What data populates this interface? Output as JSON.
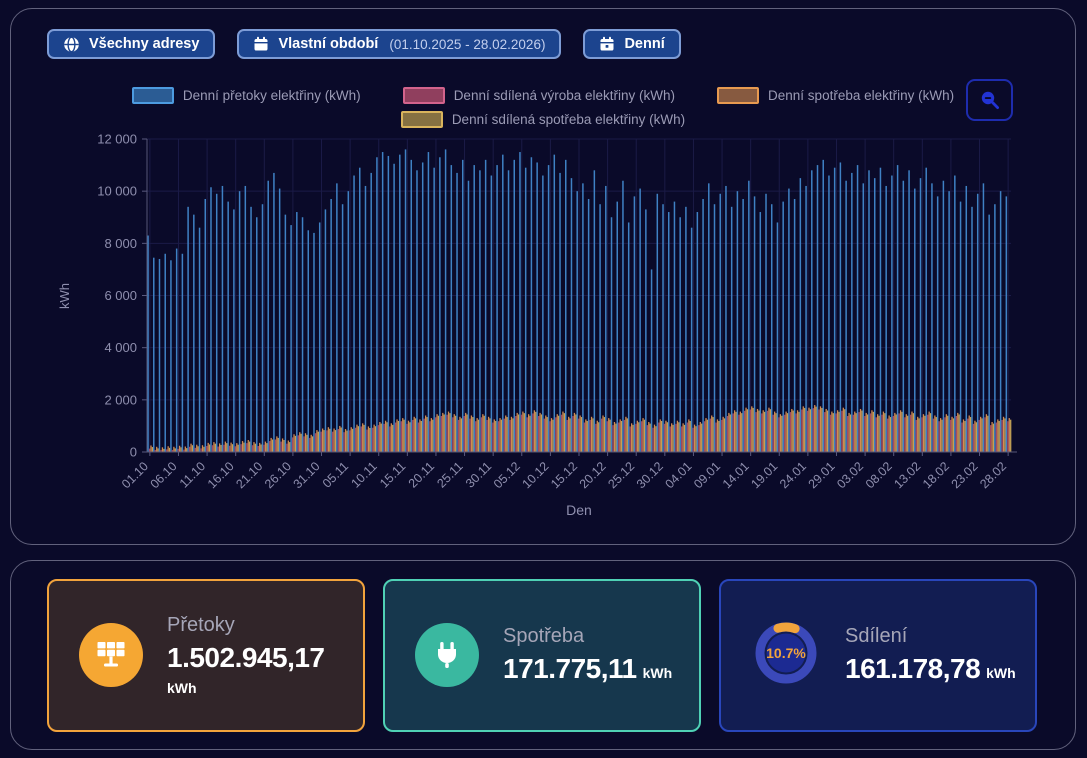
{
  "toolbar": {
    "address_button": {
      "label": "Všechny adresy"
    },
    "period_button": {
      "label": "Vlastní období",
      "range": "(01.10.2025 - 28.02.2026)"
    },
    "granularity_button": {
      "label": "Denní"
    }
  },
  "chart_data": {
    "type": "bar",
    "title": "",
    "xlabel": "Den",
    "ylabel": "kWh",
    "ylim": [
      0,
      12000
    ],
    "yticks": [
      0,
      2000,
      4000,
      6000,
      8000,
      10000,
      12000
    ],
    "ytick_labels": [
      "0",
      "2 000",
      "4 000",
      "6 000",
      "8 000",
      "10 000",
      "12 000"
    ],
    "days": 151,
    "tick_every_days": 5,
    "grid": true,
    "legend_position": "top",
    "x_tick_labels": [
      "01.10",
      "06.10",
      "11.10",
      "16.10",
      "21.10",
      "26.10",
      "31.10",
      "05.11",
      "10.11",
      "15.11",
      "20.11",
      "25.11",
      "30.11",
      "05.12",
      "10.12",
      "15.12",
      "20.12",
      "25.12",
      "30.12",
      "04.01",
      "09.01",
      "14.01",
      "19.01",
      "24.01",
      "29.01",
      "03.02",
      "08.02",
      "13.02",
      "18.02",
      "23.02",
      "28.02"
    ],
    "series": [
      {
        "name": "Denní přetoky elektřiny (kWh)",
        "color": "#3f81c4",
        "legend_fill": "#2b5c94",
        "legend_border": "#4d9be0",
        "values": [
          8300,
          7450,
          7400,
          7600,
          7350,
          7800,
          7600,
          9400,
          9100,
          8600,
          9700,
          10150,
          9900,
          10200,
          9600,
          9300,
          10000,
          10200,
          9400,
          9000,
          9500,
          10400,
          10700,
          10100,
          9100,
          8700,
          9200,
          9000,
          8500,
          8400,
          8800,
          9300,
          9700,
          10300,
          9500,
          10000,
          10600,
          10900,
          10200,
          10700,
          11300,
          11500,
          11350,
          11050,
          11400,
          11600,
          11200,
          10800,
          11100,
          11500,
          10900,
          11300,
          11600,
          11000,
          10700,
          11200,
          10400,
          11000,
          10800,
          11200,
          10600,
          11000,
          11400,
          10800,
          11200,
          11500,
          10900,
          11300,
          11100,
          10600,
          11000,
          11400,
          10700,
          11200,
          10500,
          10000,
          10300,
          9700,
          10800,
          9500,
          10200,
          9000,
          9600,
          10400,
          8800,
          9800,
          10100,
          9300,
          7000,
          9900,
          9500,
          9200,
          9600,
          9000,
          9400,
          8600,
          9200,
          9700,
          10300,
          9500,
          9900,
          10200,
          9400,
          10000,
          9700,
          10400,
          9800,
          9200,
          9900,
          9500,
          8800,
          9600,
          10100,
          9700,
          10500,
          10200,
          10800,
          11000,
          11200,
          10600,
          10900,
          11100,
          10400,
          10700,
          11000,
          10300,
          10800,
          10500,
          10900,
          10200,
          10600,
          11000,
          10400,
          10800,
          10100,
          10500,
          10900,
          10300,
          9800,
          10400,
          10000,
          10600,
          9600,
          10200,
          9400,
          9900,
          10300,
          9100,
          9500,
          10000,
          9800
        ]
      },
      {
        "name": "Denní sdílená výroba elektřiny (kWh)",
        "color": "#a34a66",
        "legend_fill": "#903f5e",
        "legend_border": "#d2638c",
        "values": [
          130,
          80,
          80,
          100,
          80,
          120,
          90,
          200,
          160,
          140,
          230,
          260,
          210,
          280,
          240,
          220,
          300,
          340,
          260,
          230,
          280,
          420,
          480,
          400,
          320,
          560,
          640,
          600,
          540,
          720,
          780,
          830,
          780,
          880,
          760,
          830,
          930,
          980,
          860,
          930,
          1030,
          1080,
          980,
          1130,
          1180,
          1080,
          1230,
          1130,
          1280,
          1180,
          1330,
          1380,
          1430,
          1330,
          1230,
          1380,
          1280,
          1180,
          1330,
          1230,
          1130,
          1180,
          1280,
          1230,
          1380,
          1430,
          1330,
          1480,
          1380,
          1280,
          1180,
          1330,
          1430,
          1230,
          1380,
          1280,
          1130,
          1230,
          1080,
          1280,
          1180,
          1030,
          1130,
          1230,
          980,
          1080,
          1180,
          1030,
          930,
          1130,
          1080,
          980,
          1080,
          980,
          1130,
          930,
          1030,
          1180,
          1280,
          1130,
          1230,
          1380,
          1480,
          1430,
          1580,
          1630,
          1530,
          1480,
          1580,
          1430,
          1330,
          1430,
          1530,
          1480,
          1630,
          1580,
          1680,
          1630,
          1530,
          1430,
          1480,
          1580,
          1380,
          1430,
          1530,
          1380,
          1480,
          1330,
          1430,
          1280,
          1380,
          1480,
          1330,
          1430,
          1230,
          1330,
          1430,
          1280,
          1180,
          1330,
          1230,
          1380,
          1130,
          1280,
          1080,
          1230,
          1330,
          1030,
          1130,
          1230,
          1180
        ]
      },
      {
        "name": "Denní spotřeba elektřiny (kWh)",
        "color": "#d28a52",
        "legend_fill": "#875a40",
        "legend_border": "#e89a50",
        "values": [
          250,
          200,
          180,
          220,
          200,
          240,
          210,
          320,
          280,
          260,
          350,
          380,
          330,
          400,
          360,
          340,
          420,
          460,
          380,
          350,
          400,
          540,
          600,
          520,
          440,
          680,
          760,
          720,
          660,
          840,
          900,
          950,
          900,
          1000,
          880,
          950,
          1050,
          1100,
          980,
          1050,
          1150,
          1200,
          1100,
          1250,
          1300,
          1200,
          1350,
          1250,
          1400,
          1300,
          1450,
          1500,
          1550,
          1450,
          1350,
          1500,
          1400,
          1300,
          1450,
          1350,
          1250,
          1300,
          1400,
          1350,
          1500,
          1550,
          1450,
          1600,
          1500,
          1400,
          1300,
          1450,
          1550,
          1350,
          1500,
          1400,
          1250,
          1350,
          1200,
          1400,
          1300,
          1150,
          1250,
          1350,
          1100,
          1200,
          1300,
          1150,
          1050,
          1250,
          1200,
          1100,
          1200,
          1100,
          1250,
          1050,
          1150,
          1300,
          1400,
          1250,
          1350,
          1500,
          1600,
          1550,
          1700,
          1750,
          1650,
          1600,
          1700,
          1550,
          1450,
          1550,
          1650,
          1600,
          1750,
          1700,
          1800,
          1750,
          1650,
          1550,
          1600,
          1700,
          1500,
          1550,
          1650,
          1500,
          1600,
          1450,
          1550,
          1400,
          1500,
          1600,
          1450,
          1550,
          1350,
          1450,
          1550,
          1400,
          1300,
          1450,
          1350,
          1500,
          1250,
          1400,
          1200,
          1350,
          1450,
          1150,
          1250,
          1350,
          1300
        ]
      },
      {
        "name": "Denní sdílená spotřeba elektřiny (kWh)",
        "color": "#c4a155",
        "legend_fill": "#867142",
        "legend_border": "#d9b45c",
        "values": [
          190,
          140,
          120,
          160,
          140,
          180,
          150,
          260,
          220,
          200,
          290,
          320,
          270,
          340,
          300,
          280,
          360,
          400,
          320,
          290,
          340,
          480,
          540,
          460,
          380,
          620,
          700,
          660,
          600,
          780,
          840,
          890,
          840,
          940,
          820,
          890,
          990,
          1040,
          920,
          990,
          1090,
          1140,
          1040,
          1190,
          1240,
          1140,
          1290,
          1190,
          1340,
          1240,
          1390,
          1440,
          1490,
          1390,
          1290,
          1440,
          1340,
          1240,
          1390,
          1290,
          1190,
          1240,
          1340,
          1290,
          1440,
          1490,
          1390,
          1540,
          1440,
          1340,
          1240,
          1390,
          1490,
          1290,
          1440,
          1340,
          1190,
          1290,
          1140,
          1340,
          1240,
          1090,
          1190,
          1290,
          1040,
          1140,
          1240,
          1090,
          990,
          1190,
          1140,
          1040,
          1140,
          1040,
          1190,
          990,
          1090,
          1240,
          1340,
          1190,
          1290,
          1440,
          1540,
          1490,
          1640,
          1690,
          1590,
          1540,
          1640,
          1490,
          1390,
          1490,
          1590,
          1540,
          1690,
          1640,
          1740,
          1690,
          1590,
          1490,
          1540,
          1640,
          1440,
          1490,
          1590,
          1440,
          1540,
          1390,
          1490,
          1340,
          1440,
          1540,
          1390,
          1490,
          1290,
          1390,
          1490,
          1340,
          1240,
          1390,
          1290,
          1440,
          1190,
          1340,
          1140,
          1290,
          1390,
          1090,
          1190,
          1290,
          1240
        ]
      }
    ]
  },
  "cards": [
    {
      "title": "Přetoky",
      "value": "1.502.945,17",
      "unit": "kWh",
      "accent": "#f2a33c",
      "icon": "solar-panel"
    },
    {
      "title": "Spotřeba",
      "value": "171.775,11",
      "unit": "kWh",
      "accent": "#4fd1b5",
      "icon": "plug"
    },
    {
      "title": "Sdílení",
      "value": "161.178,78",
      "unit": "kWh",
      "accent": "#2946bb",
      "icon": "donut-gauge",
      "percent": "10.7%",
      "percent_value": 10.7,
      "donut_arc_color": "#f2a43c",
      "donut_track_color": "#3b49ba"
    }
  ]
}
